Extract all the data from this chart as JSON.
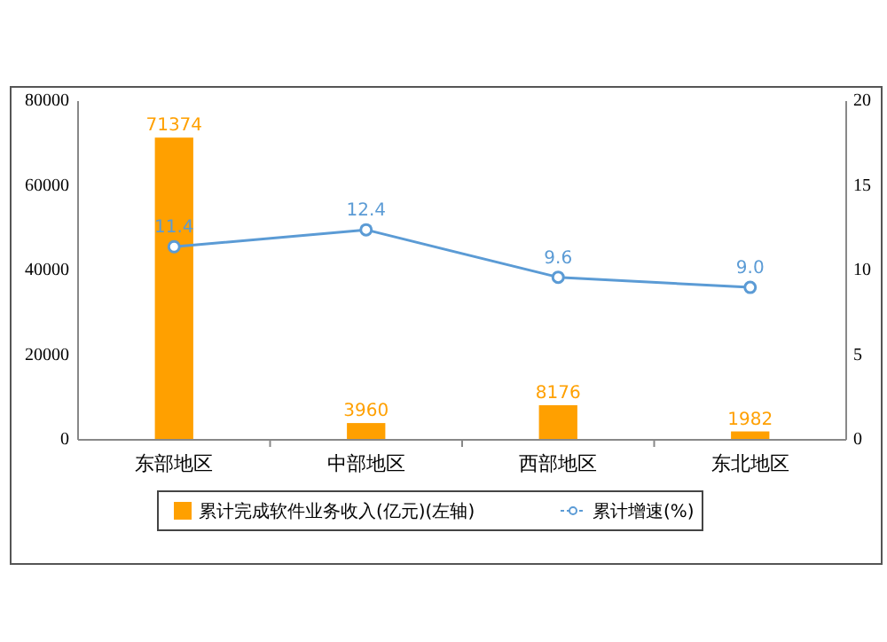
{
  "chart_data": {
    "type": "bar",
    "categories": [
      "东部地区",
      "中部地区",
      "西部地区",
      "东北地区"
    ],
    "series": [
      {
        "name": "累计完成软件业务收入(亿元)(左轴)",
        "color": "#ffa000",
        "values": [
          71374,
          3960,
          8176,
          1982
        ]
      },
      {
        "name": "累计增速(%)",
        "type": "line",
        "axis": "y2",
        "color": "#5b9bd5",
        "marker": "circle",
        "values": [
          11.4,
          12.4,
          9.6,
          9.0
        ],
        "value_labels": [
          "11.4",
          "12.4",
          "9.6",
          "9.0"
        ]
      }
    ],
    "ylim": [
      0,
      80000
    ],
    "yticks": [
      0,
      20000,
      40000,
      60000,
      80000
    ],
    "y2lim": [
      0,
      20
    ],
    "y2ticks": [
      0,
      5,
      10,
      15,
      20
    ],
    "data_labels": true,
    "legend": "bottom",
    "grid": false
  }
}
